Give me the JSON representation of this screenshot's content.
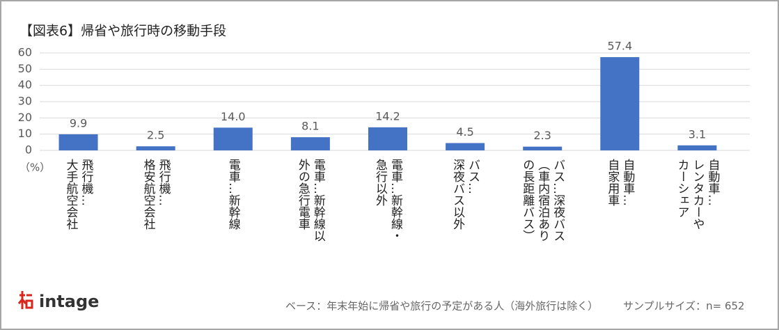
{
  "chart_data": {
    "type": "bar",
    "title": "【図表6】帰省や旅行時の移動手段",
    "ylabel": "（%）",
    "categories": [
      "飛行機…\n大手航空会社",
      "飛行機…\n格安航空会社",
      "電車…新幹線",
      "電車…新幹線以\n外の急行電車",
      "電車…新幹線・\n急行以外",
      "バス…\n深夜バス以外",
      "バス…深夜バス\n（車内宿泊あり\nの長距離バス）",
      "自動車…\n自家用車",
      "自動車…\nレンタカーや\nカーシェア"
    ],
    "values": [
      9.9,
      2.5,
      14.0,
      8.1,
      14.2,
      4.5,
      2.3,
      57.4,
      3.1
    ],
    "value_labels": [
      "9.9",
      "2.5",
      "14.0",
      "8.1",
      "14.2",
      "4.5",
      "2.3",
      "57.4",
      "3.1"
    ],
    "color": "#4472c4",
    "ylim": [
      0,
      60
    ],
    "yticks": [
      0,
      10,
      20,
      30,
      40,
      50,
      60
    ],
    "grid": true
  },
  "footer": {
    "logo": "intage",
    "base_note": "ベース：年末年始に帰省や旅行の予定がある人（海外旅行は除く）",
    "sample_size": "サンプルサイズ：n= 652"
  }
}
